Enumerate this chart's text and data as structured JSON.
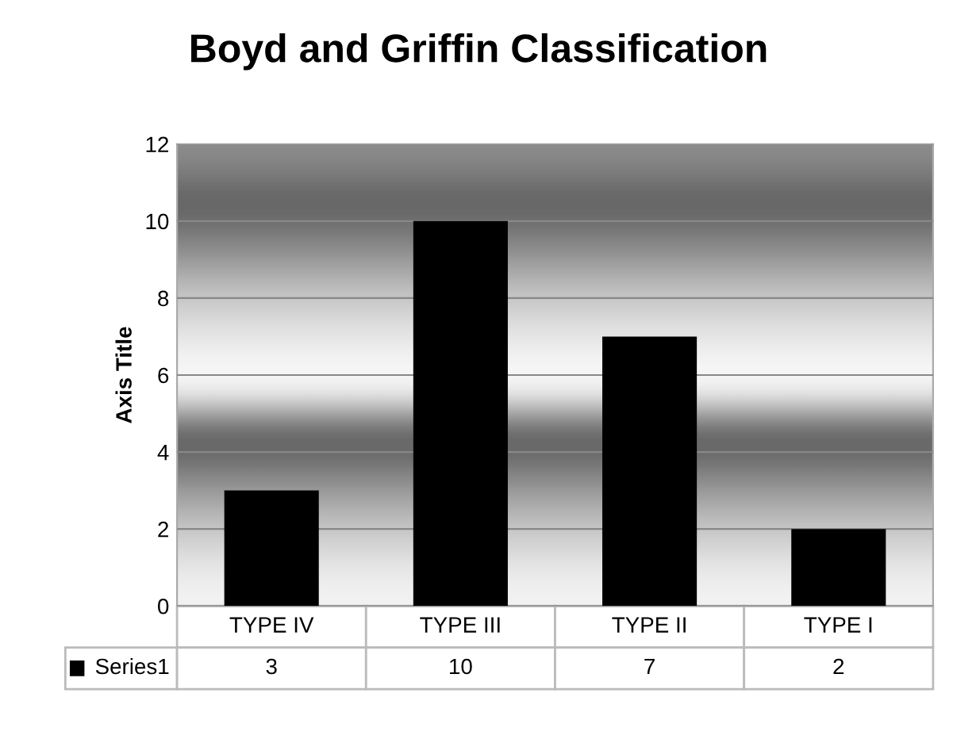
{
  "chart_data": {
    "type": "bar",
    "title": "Boyd and Griffin Classification",
    "ylabel": "Axis Title",
    "categories": [
      "TYPE IV",
      "TYPE III",
      "TYPE II",
      "TYPE I"
    ],
    "series": [
      {
        "name": "Series1",
        "color": "#000000",
        "values": [
          3,
          10,
          7,
          2
        ]
      }
    ],
    "ylim": [
      0,
      12
    ],
    "yticks": [
      0,
      2,
      4,
      6,
      8,
      10,
      12
    ],
    "grid": "y",
    "data_labels": true
  }
}
